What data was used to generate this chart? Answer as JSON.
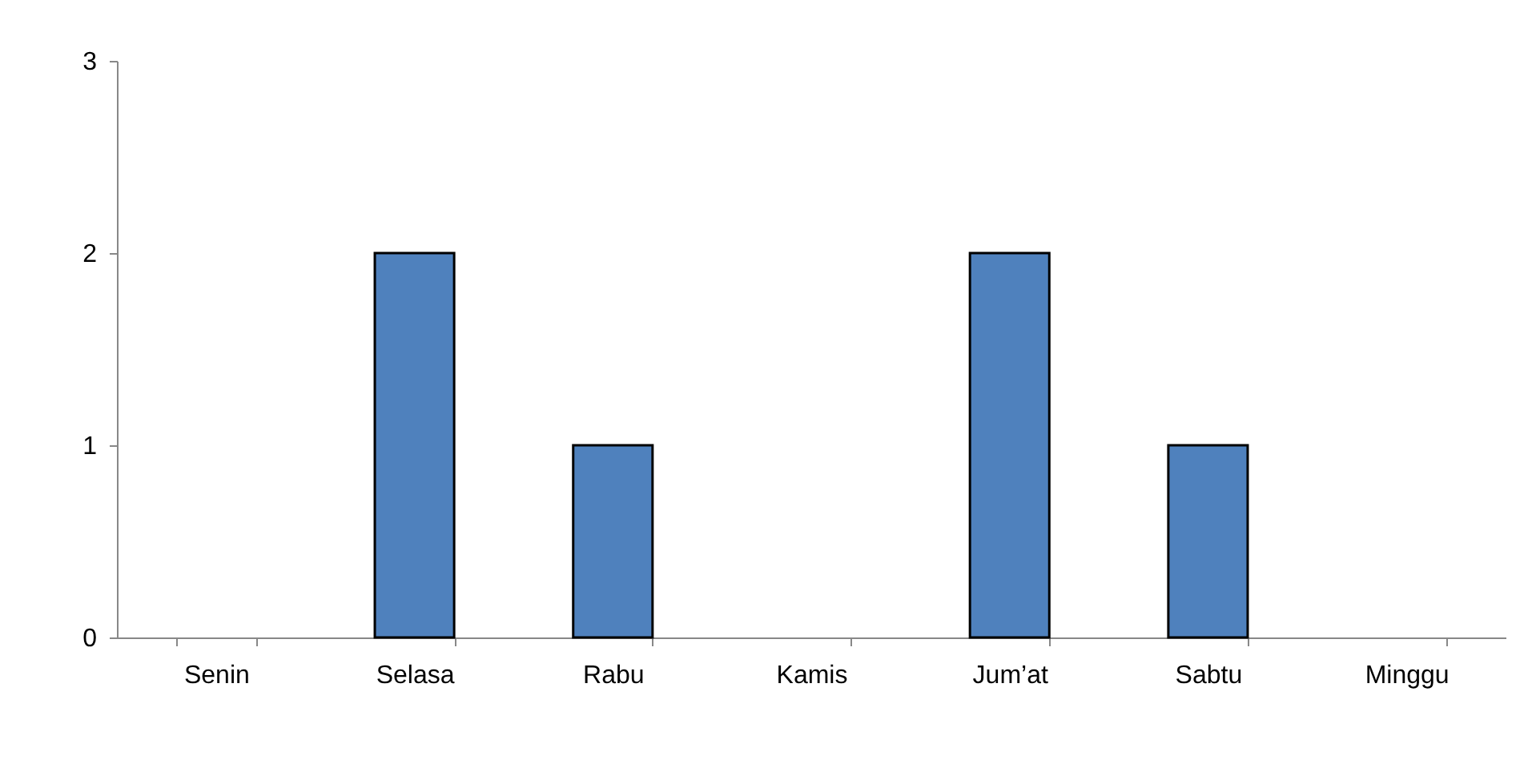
{
  "chart_data": {
    "type": "bar",
    "categories": [
      "Senin",
      "Selasa",
      "Rabu",
      "Kamis",
      "Jum’at",
      "Sabtu",
      "Minggu"
    ],
    "values": [
      0,
      2,
      1,
      0,
      2,
      1,
      0
    ],
    "color": "#4f81bd",
    "ylim": [
      0,
      3
    ],
    "yticks": [
      0,
      1,
      2,
      3
    ],
    "grid": false
  }
}
